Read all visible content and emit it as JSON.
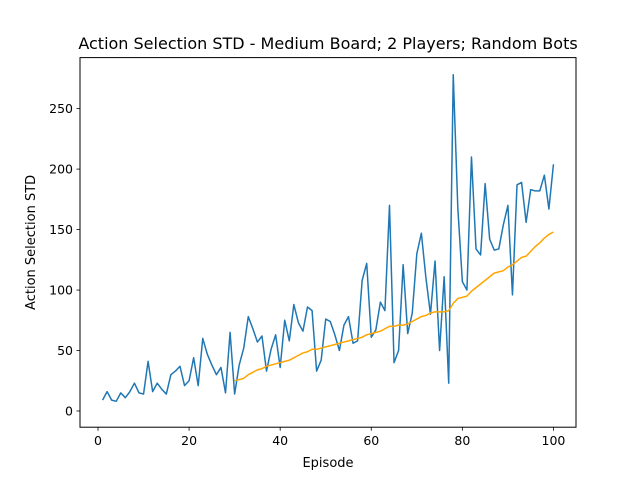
{
  "chart_data": {
    "type": "line",
    "title": "Action Selection STD - Medium Board; 2 Players; Random Bots",
    "xlabel": "Episode",
    "ylabel": "Action Selection STD",
    "xlim": [
      -3.95,
      104.95
    ],
    "ylim": [
      -13.4,
      292.2
    ],
    "xticks": [
      0,
      20,
      40,
      60,
      80,
      100
    ],
    "yticks": [
      0,
      50,
      100,
      150,
      200,
      250
    ],
    "grid": false,
    "legend": "none",
    "series": [
      {
        "color": "#1f77b4",
        "x": [
          1,
          2,
          3,
          4,
          5,
          6,
          7,
          8,
          9,
          10,
          11,
          12,
          13,
          14,
          15,
          16,
          17,
          18,
          19,
          20,
          21,
          22,
          23,
          24,
          25,
          26,
          27,
          28,
          29,
          30,
          31,
          32,
          33,
          34,
          35,
          36,
          37,
          38,
          39,
          40,
          41,
          42,
          43,
          44,
          45,
          46,
          47,
          48,
          49,
          50,
          51,
          52,
          53,
          54,
          55,
          56,
          57,
          58,
          59,
          60,
          61,
          62,
          63,
          64,
          65,
          66,
          67,
          68,
          69,
          70,
          71,
          72,
          73,
          74,
          75,
          76,
          77,
          78,
          79,
          80,
          81,
          82,
          83,
          84,
          85,
          86,
          87,
          88,
          89,
          90,
          91,
          92,
          93,
          94,
          95,
          96,
          97,
          98,
          99,
          100
        ],
        "y": [
          9,
          16,
          9,
          8,
          15,
          11,
          16,
          23,
          15,
          14,
          41,
          16,
          23,
          18,
          14,
          30,
          33,
          37,
          21,
          25,
          44,
          21,
          60,
          47,
          38,
          30,
          36,
          15,
          65,
          14,
          38,
          52,
          78,
          68,
          57,
          62,
          33,
          51,
          63,
          36,
          75,
          58,
          88,
          73,
          66,
          86,
          83,
          33,
          42,
          76,
          74,
          63,
          50,
          71,
          78,
          56,
          58,
          108,
          122,
          61,
          67,
          90,
          83,
          170,
          40,
          50,
          121,
          64,
          81,
          130,
          147,
          110,
          80,
          124,
          50,
          111,
          23,
          278,
          168,
          107,
          100,
          210,
          134,
          129,
          188,
          142,
          133,
          134,
          154,
          170,
          96,
          187,
          189,
          156,
          183,
          182,
          182,
          195,
          167,
          204
        ]
      },
      {
        "color": "#ffa500",
        "x": [
          30,
          31,
          32,
          33,
          34,
          35,
          36,
          37,
          38,
          39,
          40,
          41,
          42,
          43,
          44,
          45,
          46,
          47,
          48,
          49,
          50,
          51,
          52,
          53,
          54,
          55,
          56,
          57,
          58,
          59,
          60,
          61,
          62,
          63,
          64,
          65,
          66,
          67,
          68,
          69,
          70,
          71,
          72,
          73,
          74,
          75,
          76,
          77,
          78,
          79,
          80,
          81,
          82,
          83,
          84,
          85,
          86,
          87,
          88,
          89,
          90,
          91,
          92,
          93,
          94,
          95,
          96,
          97,
          98,
          99,
          100
        ],
        "y": [
          25,
          26,
          27,
          30,
          32,
          34,
          35,
          37,
          38,
          39,
          40,
          41,
          42,
          44,
          46,
          48,
          49,
          51,
          51,
          52,
          53,
          54,
          55,
          56,
          57,
          58,
          59,
          60,
          61,
          63,
          64,
          65,
          66,
          68,
          70,
          70,
          71,
          71,
          72,
          74,
          76,
          78,
          79,
          81,
          82,
          82,
          82,
          83,
          89,
          93,
          94,
          95,
          99,
          102,
          105,
          108,
          111,
          114,
          115,
          116,
          119,
          121,
          124,
          127,
          128,
          132,
          136,
          139,
          143,
          146,
          148
        ]
      }
    ]
  }
}
